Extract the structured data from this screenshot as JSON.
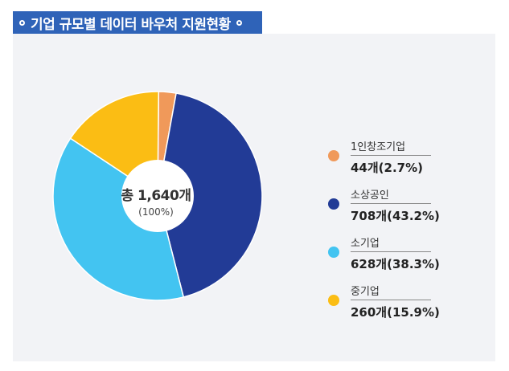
{
  "header": {
    "title": "기업 규모별 데이터 바우처 지원현황"
  },
  "chart_data": {
    "type": "pie",
    "title": "기업 규모별 데이터 바우처 지원현황",
    "center_total": "총 1,640개",
    "center_percent": "(100%)",
    "slices": [
      {
        "name": "1인창조기업",
        "value": 44,
        "percent": 2.7,
        "label": "44개(2.7%)",
        "color": "#f0995a"
      },
      {
        "name": "소상공인",
        "value": 708,
        "percent": 43.2,
        "label": "708개(43.2%)",
        "color": "#223b96"
      },
      {
        "name": "소기업",
        "value": 628,
        "percent": 38.3,
        "label": "628개(38.3%)",
        "color": "#43c4f1"
      },
      {
        "name": "중기업",
        "value": 260,
        "percent": 15.9,
        "label": "260개(15.9%)",
        "color": "#fbbd14"
      }
    ],
    "legend_position": "right"
  }
}
